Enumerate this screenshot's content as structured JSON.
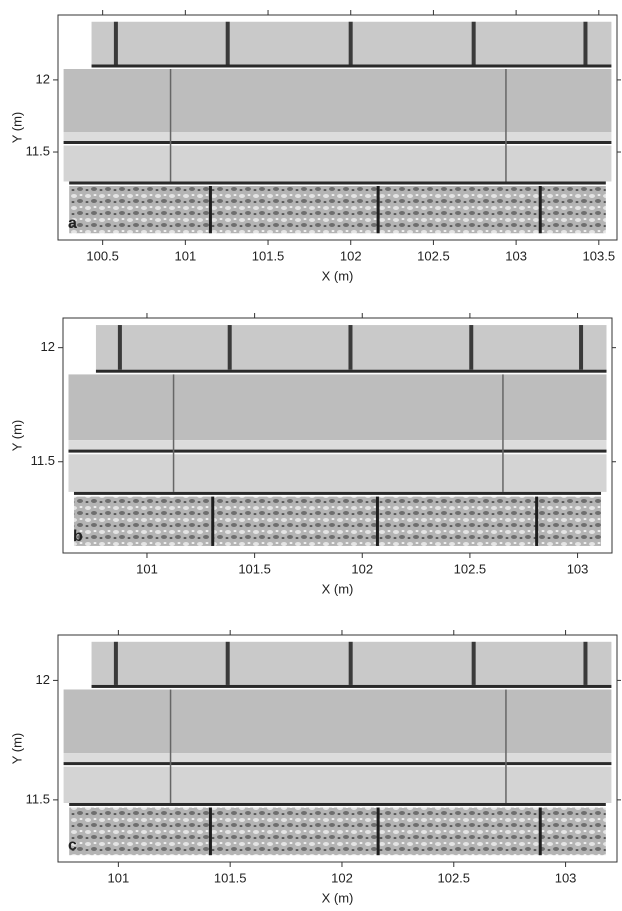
{
  "chart_data": [
    {
      "type": "image",
      "panel_label": "a",
      "xlabel": "X (m)",
      "ylabel": "Y (m)",
      "xlim": [
        100.23,
        103.61
      ],
      "ylim": [
        10.89,
        12.45
      ],
      "xticks": [
        100.5,
        101,
        101.5,
        102,
        102.5,
        103,
        103.5
      ],
      "yticks": [
        11.5,
        12
      ]
    },
    {
      "type": "image",
      "panel_label": "b",
      "xlabel": "X (m)",
      "ylabel": "Y (m)",
      "xlim": [
        100.61,
        103.16
      ],
      "ylim": [
        11.1,
        12.13
      ],
      "xticks": [
        101,
        101.5,
        102,
        102.5,
        103
      ],
      "yticks": [
        11.5,
        12
      ]
    },
    {
      "type": "image",
      "panel_label": "c",
      "xlabel": "X (m)",
      "ylabel": "Y (m)",
      "xlim": [
        100.73,
        103.23
      ],
      "ylim": [
        11.24,
        12.19
      ],
      "xticks": [
        101,
        101.5,
        102,
        102.5,
        103
      ],
      "yticks": [
        11.5,
        12
      ]
    }
  ]
}
